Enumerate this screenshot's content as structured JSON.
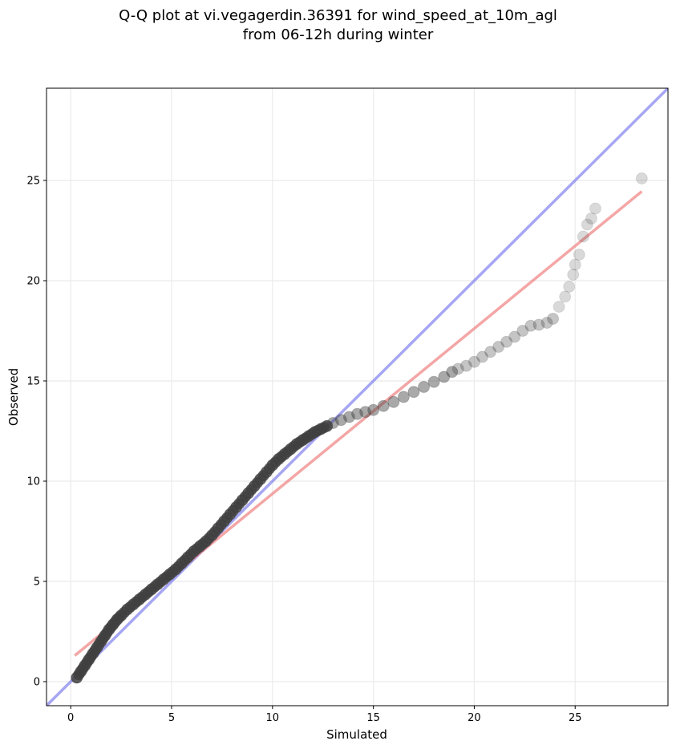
{
  "chart_data": {
    "type": "scatter",
    "title_line1": "Q-Q plot at vi.vegagerdin.36391 for wind_speed_at_10m_agl",
    "title_line2": "from 06-12h during winter",
    "xlabel": "Simulated",
    "ylabel": "Observed",
    "xlim": [
      -1.2,
      29.6
    ],
    "ylim": [
      -1.2,
      29.6
    ],
    "xticks": [
      0,
      5,
      10,
      15,
      20,
      25
    ],
    "yticks": [
      0,
      5,
      10,
      15,
      20,
      25
    ],
    "grid": true,
    "colors": {
      "identity_line": "#8080f0",
      "fit_line": "#f08080",
      "points": "#404040"
    },
    "identity_line": {
      "name": "",
      "x": [
        -1.2,
        29.6
      ],
      "y": [
        -1.2,
        29.6
      ]
    },
    "fit_line": {
      "name": "",
      "x": [
        0.2,
        28.3
      ],
      "y": [
        1.3,
        24.45
      ]
    },
    "quantiles": {
      "x": [
        0.3,
        0.5,
        0.7,
        0.9,
        1.1,
        1.3,
        1.5,
        1.7,
        1.9,
        2.1,
        2.3,
        2.5,
        2.8,
        3.1,
        3.4,
        3.7,
        4.0,
        4.3,
        4.6,
        4.9,
        5.2,
        5.5,
        5.8,
        6.1,
        6.4,
        6.7,
        7.0,
        7.3,
        7.6,
        7.9,
        8.2,
        8.5,
        8.8,
        9.1,
        9.4,
        9.7,
        10.0,
        10.3,
        10.6,
        10.9,
        11.2,
        11.5,
        11.8,
        12.1,
        12.4,
        12.7,
        13.0,
        13.4,
        13.8,
        14.2,
        14.6,
        15.0,
        15.5,
        16.0,
        16.5,
        17.0,
        17.5,
        18.0,
        18.5,
        18.9,
        19.2,
        19.6,
        20.0,
        20.4,
        20.8,
        21.2,
        21.6,
        22.0,
        22.4,
        22.8,
        23.2,
        23.6,
        23.9,
        24.2,
        24.5,
        24.7,
        24.9,
        25.0,
        25.2,
        25.4,
        25.6,
        25.8,
        26.0,
        28.3
      ],
      "y": [
        0.2,
        0.5,
        0.8,
        1.1,
        1.4,
        1.7,
        2.0,
        2.3,
        2.6,
        2.85,
        3.1,
        3.3,
        3.6,
        3.85,
        4.1,
        4.35,
        4.6,
        4.85,
        5.1,
        5.35,
        5.6,
        5.9,
        6.2,
        6.5,
        6.75,
        7.0,
        7.3,
        7.65,
        8.0,
        8.35,
        8.7,
        9.05,
        9.4,
        9.75,
        10.1,
        10.45,
        10.8,
        11.1,
        11.35,
        11.6,
        11.85,
        12.05,
        12.25,
        12.45,
        12.6,
        12.75,
        12.9,
        13.05,
        13.2,
        13.35,
        13.45,
        13.55,
        13.75,
        13.95,
        14.2,
        14.45,
        14.7,
        14.95,
        15.2,
        15.45,
        15.6,
        15.75,
        15.95,
        16.2,
        16.45,
        16.7,
        16.95,
        17.2,
        17.5,
        17.75,
        17.8,
        17.9,
        18.1,
        18.7,
        19.2,
        19.7,
        20.3,
        20.8,
        21.3,
        22.2,
        22.8,
        23.1,
        23.6,
        25.1
      ]
    }
  }
}
